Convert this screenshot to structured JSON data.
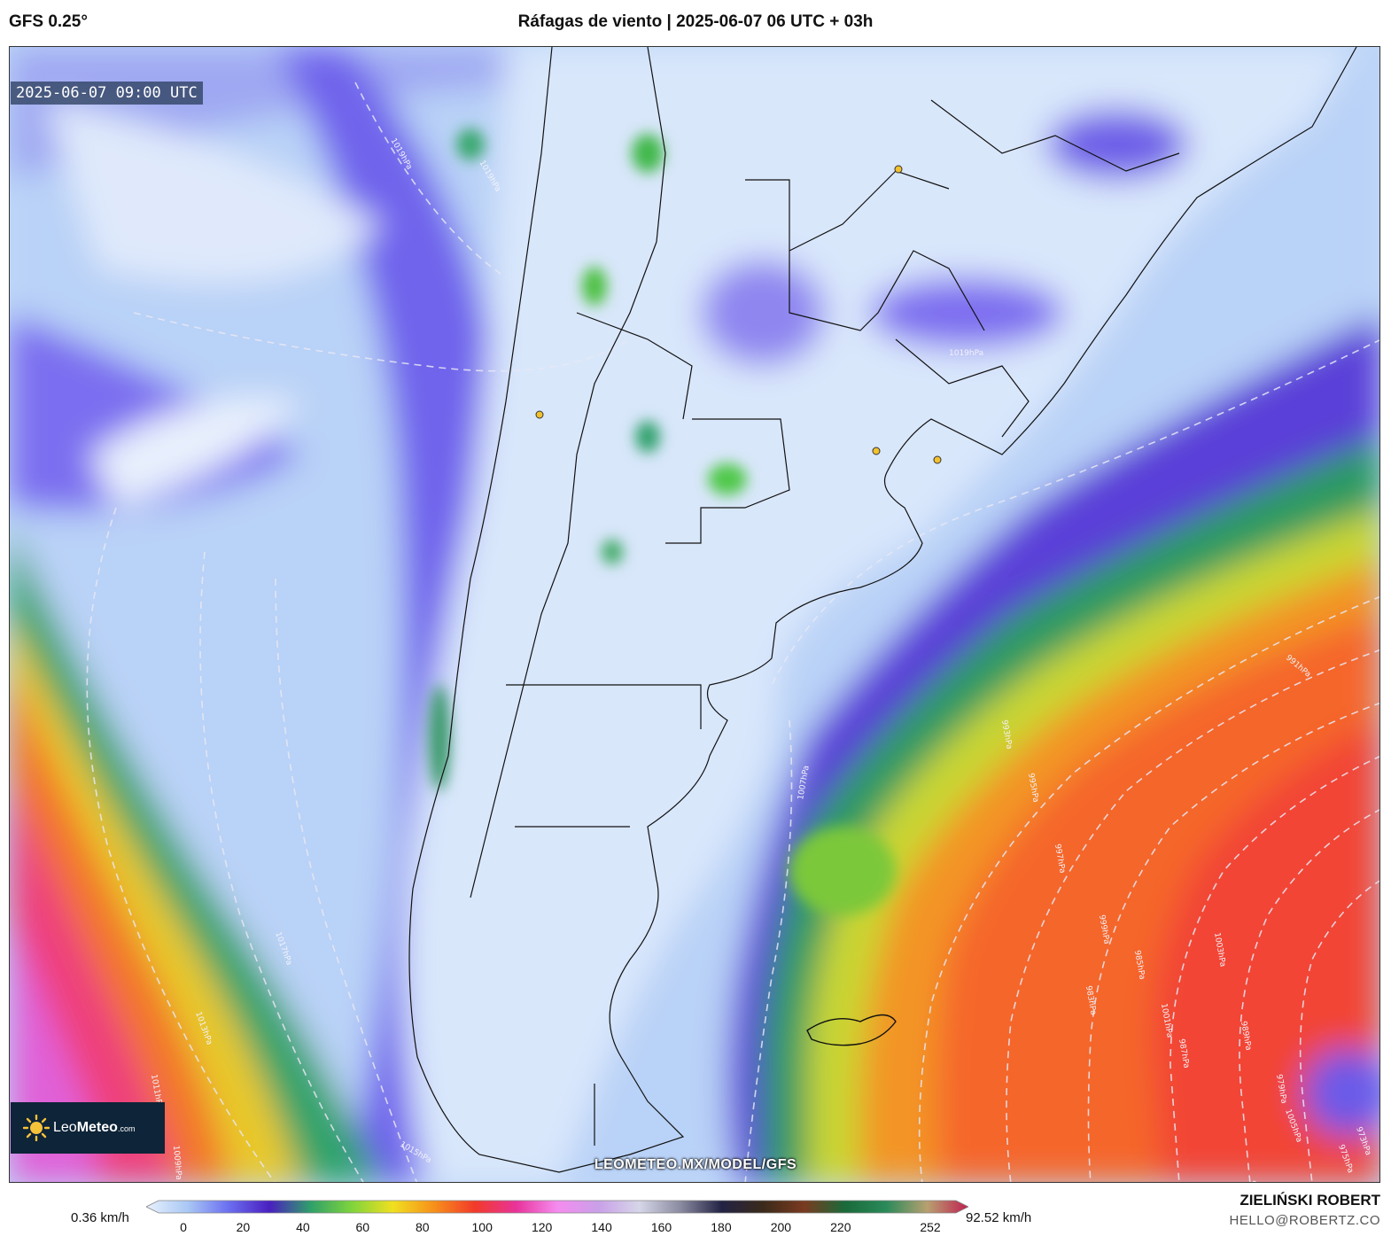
{
  "header": {
    "model": "GFS 0.25°",
    "title": "Ráfagas de viento | 2025-06-07 06 UTC + 03h"
  },
  "map": {
    "valid_time": "2025-06-07 09:00 UTC",
    "variable": "wind gusts",
    "isobar_labels": [
      "1019hPa",
      "1019hPa",
      "1019hPa",
      "1017hPa",
      "1015hPa",
      "1013hPa",
      "1011hPa",
      "1009hPa",
      "1007hPa",
      "1005hPa",
      "1003hPa",
      "1001hPa",
      "999hPa",
      "997hPa",
      "995hPa",
      "993hPa",
      "991hPa",
      "989hPa",
      "987hPa",
      "985hPa",
      "983hPa",
      "981hPa",
      "979hPa",
      "977hPa",
      "975hPa",
      "973hPa"
    ],
    "watermark_url": "LEOMETEO.MX/MODEL/GFS"
  },
  "logo": {
    "brand_light": "Leo",
    "brand_bold": "Meteo",
    "brand_suffix": ".com"
  },
  "scale": {
    "min_label": "0.36 km/h",
    "max_label": "92.52 km/h",
    "ticks": [
      "0",
      "20",
      "40",
      "60",
      "80",
      "100",
      "120",
      "140",
      "160",
      "180",
      "200",
      "220",
      "252"
    ],
    "colors": [
      "#e8f1fc",
      "#aac8f5",
      "#6b6ff0",
      "#4a1fc0",
      "#2fa06a",
      "#7fd43c",
      "#f0e020",
      "#f7901a",
      "#f23a2a",
      "#e8339a",
      "#f58cf0",
      "#c9a0e8",
      "#d6d6e8",
      "#8a8aa0",
      "#222244",
      "#3a2a1a",
      "#7a3a20",
      "#1a6a3a",
      "#2a8a5a",
      "#b8a070",
      "#c02050"
    ]
  },
  "footer": {
    "author": "ZIELIŃSKI ROBERT",
    "email": "HELLO@ROBERTZ.CO"
  }
}
